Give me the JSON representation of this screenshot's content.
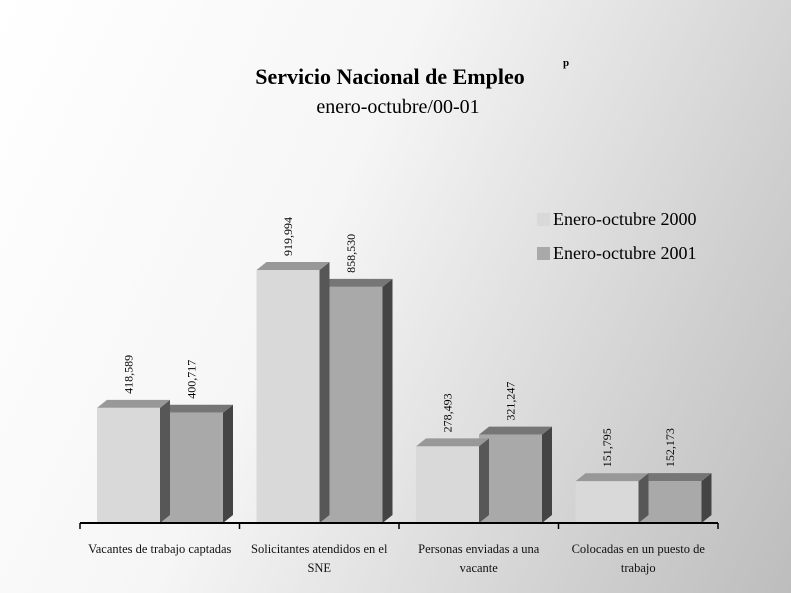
{
  "chart_data": {
    "type": "bar3d",
    "title": "Servicio Nacional de Empleo",
    "title_note": "p",
    "subtitle": "enero-octubre/00-01",
    "categories": [
      "Vacantes de trabajo captadas",
      "Solicitantes atendidos en el SNE",
      "Personas enviadas a una vacante",
      "Colocadas en un puesto de trabajo"
    ],
    "series": [
      {
        "name": "Enero-octubre 2000",
        "color": "#d9d9d9",
        "values": [
          418589,
          919994,
          278493,
          151795
        ],
        "value_labels": [
          "418,589",
          "919,994",
          "278,493",
          "151,795"
        ]
      },
      {
        "name": "Enero-octubre 2001",
        "color": "#a9a9a9",
        "values": [
          400717,
          858530,
          321247,
          152173
        ],
        "value_labels": [
          "400,717",
          "858,530",
          "321,247",
          "152,173"
        ]
      }
    ],
    "legend": "upper right"
  }
}
